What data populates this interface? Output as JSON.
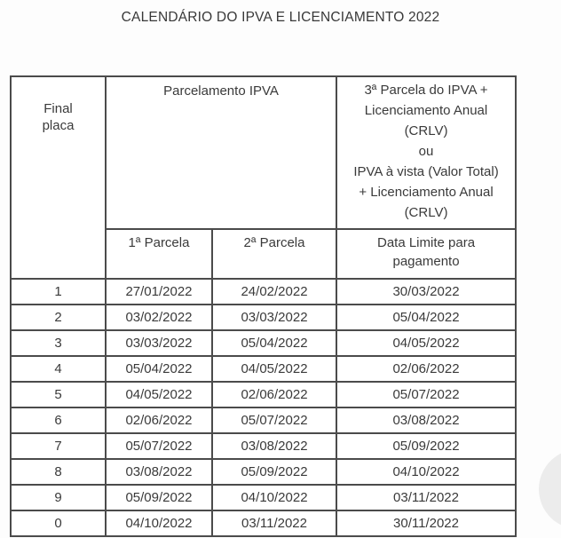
{
  "page": {
    "title": "CALENDÁRIO DO IPVA E LICENCIAMENTO 2022"
  },
  "colors": {
    "border": "#4b4b4b",
    "text": "#3a3a3a",
    "background": "#fdfdfd",
    "corner_circle": "#ececec"
  },
  "table": {
    "header": {
      "final_placa": "Final\nplaca",
      "parcelamento": "Parcelamento IPVA",
      "terceira_parcela": "3ª Parcela do IPVA +\nLicenciamento Anual\n(CRLV)\nou\nIPVA à vista (Valor Total)\n+ Licenciamento Anual\n(CRLV)",
      "primeira_parcela": "1ª Parcela",
      "segunda_parcela": "2ª Parcela",
      "data_limite": "Data Limite para\npagamento"
    },
    "rows": [
      {
        "final": "1",
        "p1": "27/01/2022",
        "p2": "24/02/2022",
        "limite": "30/03/2022"
      },
      {
        "final": "2",
        "p1": "03/02/2022",
        "p2": "03/03/2022",
        "limite": "05/04/2022"
      },
      {
        "final": "3",
        "p1": "03/03/2022",
        "p2": "05/04/2022",
        "limite": "04/05/2022"
      },
      {
        "final": "4",
        "p1": "05/04/2022",
        "p2": "04/05/2022",
        "limite": "02/06/2022"
      },
      {
        "final": "5",
        "p1": "04/05/2022",
        "p2": "02/06/2022",
        "limite": "05/07/2022"
      },
      {
        "final": "6",
        "p1": "02/06/2022",
        "p2": "05/07/2022",
        "limite": "03/08/2022"
      },
      {
        "final": "7",
        "p1": "05/07/2022",
        "p2": "03/08/2022",
        "limite": "05/09/2022"
      },
      {
        "final": "8",
        "p1": "03/08/2022",
        "p2": "05/09/2022",
        "limite": "04/10/2022"
      },
      {
        "final": "9",
        "p1": "05/09/2022",
        "p2": "04/10/2022",
        "limite": "03/11/2022"
      },
      {
        "final": "0",
        "p1": "04/10/2022",
        "p2": "03/11/2022",
        "limite": "30/11/2022"
      }
    ]
  }
}
